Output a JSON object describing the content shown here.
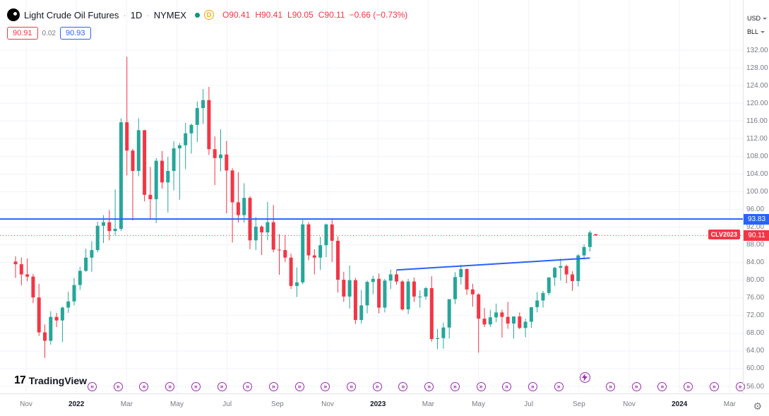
{
  "colors": {
    "background": "#ffffff",
    "grid": "#f0f3fa",
    "up": "#26a69a",
    "down": "#f23645",
    "accent_blue": "#2962ff",
    "marker_purple": "#9c27b0",
    "axis_text": "#787b86",
    "text": "#131722",
    "badge_orange": "#f7a600"
  },
  "header": {
    "symbol": "Light Crude Oil Futures",
    "separator": "·",
    "interval": "1D",
    "exchange": "NYMEX",
    "data_mode_letter": "D",
    "ohlc": {
      "open_label": "O",
      "open": "90.41",
      "high_label": "H",
      "high": "90.41",
      "low_label": "L",
      "low": "90.05",
      "close_label": "C",
      "close": "90.11",
      "change": "−0.66 (−0.73%)"
    },
    "bid": "90.91",
    "spread": "0.02",
    "ask": "90.93"
  },
  "price_axis": {
    "currency": "USD",
    "unit": "BLL"
  },
  "levels": {
    "horizontal_line": {
      "price": 93.83,
      "label": "93.83",
      "color": "#2962ff"
    },
    "last_price": {
      "price": 90.11,
      "label": "90.11",
      "contract_label": "CLV2023",
      "color": "#f23645"
    },
    "trendline": {
      "start_index": 65,
      "start_price": 82.3,
      "end_index": 98,
      "end_price": 85.0,
      "color": "#2962ff"
    }
  },
  "markers": {
    "rollover_glyph": "»",
    "rollover_count": 26,
    "lightning_slot": 19
  },
  "footer": {
    "logo_mark": "17",
    "logo_text": "TradingView"
  },
  "misc": {
    "gear_glyph": "⚙"
  },
  "chart_data": {
    "type": "candlestick",
    "title": "Light Crude Oil Futures · 1D · NYMEX",
    "unit": "USD/BLL",
    "ylim": [
      56,
      132
    ],
    "y_tick_step": 4,
    "y_ticks": [
      "132.00",
      "128.00",
      "124.00",
      "120.00",
      "116.00",
      "112.00",
      "108.00",
      "104.00",
      "100.00",
      "96.00",
      "92.00",
      "88.00",
      "84.00",
      "80.00",
      "76.00",
      "72.00",
      "68.00",
      "64.00",
      "60.00",
      "56.00"
    ],
    "time_ticks": [
      {
        "label": "Nov",
        "year": false
      },
      {
        "label": "2022",
        "year": true
      },
      {
        "label": "Mar",
        "year": false
      },
      {
        "label": "May",
        "year": false
      },
      {
        "label": "Jul",
        "year": false
      },
      {
        "label": "Sep",
        "year": false
      },
      {
        "label": "Nov",
        "year": false
      },
      {
        "label": "2023",
        "year": true
      },
      {
        "label": "Mar",
        "year": false
      },
      {
        "label": "May",
        "year": false
      },
      {
        "label": "Jul",
        "year": false
      },
      {
        "label": "Sep",
        "year": false
      },
      {
        "label": "Nov",
        "year": false
      },
      {
        "label": "2024",
        "year": true
      },
      {
        "label": "Mar",
        "year": false
      }
    ],
    "x_range": [
      "Nov 2021",
      "Mar 2024"
    ],
    "resolution_note": "values estimated from chart, approx weekly candles [date, open, high, low, close]",
    "candles": [
      [
        "2021-10-25",
        84.2,
        85.4,
        80.5,
        83.6
      ],
      [
        "2021-11-01",
        83.6,
        85.1,
        78.8,
        81.3
      ],
      [
        "2021-11-08",
        81.3,
        84.9,
        79.8,
        80.8
      ],
      [
        "2021-11-15",
        80.8,
        81.4,
        74.8,
        76.1
      ],
      [
        "2021-11-22",
        76.1,
        79.2,
        67.4,
        68.2
      ],
      [
        "2021-11-29",
        68.2,
        70.0,
        62.4,
        66.3
      ],
      [
        "2021-12-06",
        66.3,
        73.0,
        65.4,
        71.7
      ],
      [
        "2021-12-13",
        71.7,
        72.6,
        69.4,
        70.9
      ],
      [
        "2021-12-20",
        70.9,
        74.0,
        66.0,
        73.8
      ],
      [
        "2021-12-27",
        73.8,
        77.4,
        72.6,
        75.2
      ],
      [
        "2022-01-03",
        75.2,
        80.5,
        74.3,
        78.9
      ],
      [
        "2022-01-10",
        78.9,
        83.0,
        77.8,
        82.1
      ],
      [
        "2022-01-17",
        82.1,
        87.1,
        81.9,
        85.1
      ],
      [
        "2022-01-24",
        85.1,
        88.8,
        81.9,
        86.8
      ],
      [
        "2022-01-31",
        86.8,
        93.2,
        86.3,
        92.3
      ],
      [
        "2022-02-07",
        92.3,
        94.7,
        88.4,
        93.1
      ],
      [
        "2022-02-14",
        93.1,
        95.8,
        89.0,
        91.1
      ],
      [
        "2022-02-21",
        91.1,
        100.5,
        90.1,
        91.6
      ],
      [
        "2022-02-28",
        91.6,
        116.6,
        91.1,
        115.7
      ],
      [
        "2022-03-07",
        115.7,
        130.5,
        103.7,
        109.3
      ],
      [
        "2022-03-14",
        109.3,
        109.7,
        93.5,
        104.7
      ],
      [
        "2022-03-21",
        104.7,
        116.6,
        103.5,
        113.9
      ],
      [
        "2022-03-28",
        113.9,
        114.0,
        97.8,
        99.3
      ],
      [
        "2022-04-04",
        99.3,
        105.6,
        93.8,
        98.3
      ],
      [
        "2022-04-11",
        98.3,
        107.6,
        92.9,
        107.0
      ],
      [
        "2022-04-18",
        107.0,
        109.2,
        100.7,
        102.1
      ],
      [
        "2022-04-25",
        102.1,
        107.9,
        95.3,
        104.7
      ],
      [
        "2022-05-02",
        104.7,
        111.4,
        100.3,
        109.8
      ],
      [
        "2022-05-09",
        109.8,
        111.0,
        98.2,
        110.5
      ],
      [
        "2022-05-16",
        110.5,
        115.6,
        105.1,
        113.2
      ],
      [
        "2022-05-23",
        113.2,
        115.4,
        108.6,
        115.1
      ],
      [
        "2022-05-30",
        115.1,
        120.4,
        111.2,
        118.9
      ],
      [
        "2022-06-06",
        118.9,
        123.2,
        115.3,
        120.7
      ],
      [
        "2022-06-13",
        120.7,
        123.7,
        108.3,
        109.6
      ],
      [
        "2022-06-20",
        109.6,
        112.5,
        101.5,
        107.6
      ],
      [
        "2022-06-27",
        107.6,
        114.1,
        104.6,
        108.4
      ],
      [
        "2022-07-04",
        108.4,
        111.5,
        95.1,
        104.8
      ],
      [
        "2022-07-11",
        104.8,
        105.3,
        88.5,
        97.6
      ],
      [
        "2022-07-18",
        97.6,
        104.4,
        93.0,
        94.7
      ],
      [
        "2022-07-25",
        94.7,
        101.9,
        93.0,
        98.6
      ],
      [
        "2022-08-01",
        98.6,
        99.0,
        87.0,
        89.0
      ],
      [
        "2022-08-08",
        89.0,
        94.3,
        86.8,
        92.1
      ],
      [
        "2022-08-15",
        92.1,
        92.4,
        85.7,
        90.8
      ],
      [
        "2022-08-22",
        90.8,
        97.7,
        89.0,
        93.1
      ],
      [
        "2022-08-29",
        93.1,
        97.0,
        86.3,
        86.9
      ],
      [
        "2022-09-05",
        86.9,
        90.4,
        81.2,
        86.8
      ],
      [
        "2022-09-12",
        86.8,
        90.2,
        84.1,
        85.1
      ],
      [
        "2022-09-19",
        85.1,
        86.0,
        78.0,
        78.7
      ],
      [
        "2022-09-26",
        78.7,
        82.9,
        76.2,
        79.5
      ],
      [
        "2022-10-03",
        79.5,
        93.6,
        79.1,
        92.6
      ],
      [
        "2022-10-10",
        92.6,
        93.1,
        84.5,
        85.6
      ],
      [
        "2022-10-17",
        85.6,
        87.0,
        81.3,
        85.1
      ],
      [
        "2022-10-24",
        85.1,
        89.8,
        82.3,
        87.9
      ],
      [
        "2022-10-31",
        87.9,
        92.8,
        85.2,
        92.6
      ],
      [
        "2022-11-07",
        92.6,
        93.7,
        84.1,
        88.9
      ],
      [
        "2022-11-14",
        88.9,
        89.9,
        77.2,
        80.1
      ],
      [
        "2022-11-21",
        80.1,
        81.9,
        75.1,
        76.3
      ],
      [
        "2022-11-28",
        76.3,
        83.3,
        73.6,
        80.0
      ],
      [
        "2022-12-05",
        80.0,
        80.5,
        70.1,
        71.0
      ],
      [
        "2022-12-12",
        71.0,
        77.8,
        70.2,
        74.3
      ],
      [
        "2022-12-19",
        74.3,
        79.9,
        72.5,
        79.6
      ],
      [
        "2022-12-26",
        79.6,
        81.0,
        76.8,
        80.3
      ],
      [
        "2023-01-02",
        80.3,
        81.5,
        72.5,
        73.8
      ],
      [
        "2023-01-09",
        73.8,
        80.3,
        72.7,
        79.9
      ],
      [
        "2023-01-16",
        79.9,
        82.4,
        78.0,
        81.3
      ],
      [
        "2023-01-23",
        81.3,
        82.2,
        79.0,
        79.7
      ],
      [
        "2023-01-30",
        79.7,
        80.0,
        73.1,
        73.4
      ],
      [
        "2023-02-06",
        73.4,
        80.3,
        72.3,
        79.7
      ],
      [
        "2023-02-13",
        79.7,
        80.6,
        75.1,
        76.3
      ],
      [
        "2023-02-20",
        76.3,
        77.7,
        73.8,
        76.3
      ],
      [
        "2023-02-27",
        76.3,
        78.5,
        75.6,
        78.2
      ],
      [
        "2023-03-06",
        78.2,
        80.9,
        66.1,
        66.7
      ],
      [
        "2023-03-13",
        66.7,
        69.0,
        64.4,
        66.9
      ],
      [
        "2023-03-20",
        66.9,
        70.4,
        64.5,
        69.3
      ],
      [
        "2023-03-27",
        69.3,
        75.7,
        66.8,
        75.7
      ],
      [
        "2023-04-03",
        75.7,
        81.8,
        74.6,
        80.7
      ],
      [
        "2023-04-10",
        80.7,
        83.5,
        79.0,
        82.5
      ],
      [
        "2023-04-17",
        82.5,
        82.7,
        76.7,
        77.9
      ],
      [
        "2023-04-24",
        77.9,
        79.2,
        74.0,
        76.8
      ],
      [
        "2023-05-01",
        76.8,
        77.0,
        63.6,
        71.3
      ],
      [
        "2023-05-08",
        71.3,
        73.7,
        69.4,
        70.0
      ],
      [
        "2023-05-15",
        70.0,
        73.3,
        69.4,
        71.6
      ],
      [
        "2023-05-22",
        71.6,
        74.7,
        70.5,
        72.7
      ],
      [
        "2023-05-29",
        72.7,
        73.3,
        67.0,
        71.7
      ],
      [
        "2023-06-05",
        71.7,
        75.1,
        69.0,
        70.2
      ],
      [
        "2023-06-12",
        70.2,
        71.8,
        66.8,
        71.8
      ],
      [
        "2023-06-19",
        71.8,
        72.7,
        68.9,
        69.2
      ],
      [
        "2023-06-26",
        69.2,
        71.3,
        67.1,
        70.6
      ],
      [
        "2023-07-03",
        70.6,
        73.9,
        69.2,
        73.9
      ],
      [
        "2023-07-10",
        73.9,
        77.3,
        72.7,
        75.4
      ],
      [
        "2023-07-17",
        75.4,
        77.6,
        73.8,
        77.1
      ],
      [
        "2023-07-24",
        77.1,
        80.7,
        76.6,
        80.6
      ],
      [
        "2023-07-31",
        80.6,
        83.0,
        78.7,
        82.8
      ],
      [
        "2023-08-07",
        82.8,
        84.9,
        79.9,
        83.2
      ],
      [
        "2023-08-14",
        83.2,
        83.5,
        79.3,
        81.3
      ],
      [
        "2023-08-21",
        81.3,
        82.0,
        77.6,
        79.8
      ],
      [
        "2023-08-28",
        79.8,
        85.9,
        78.6,
        85.6
      ],
      [
        "2023-09-05",
        85.6,
        88.1,
        84.7,
        87.5
      ],
      [
        "2023-09-11",
        87.5,
        91.2,
        86.5,
        90.77
      ],
      [
        "2023-09-14",
        90.41,
        90.41,
        90.05,
        90.11
      ]
    ]
  }
}
